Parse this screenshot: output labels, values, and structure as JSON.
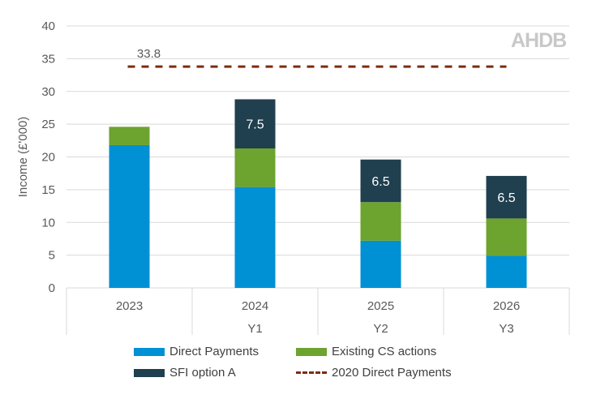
{
  "chart_data": {
    "type": "bar",
    "stacked": true,
    "categories": [
      "2023",
      "2024",
      "2025",
      "2026"
    ],
    "subcategories": [
      "",
      "Y1",
      "Y2",
      "Y3"
    ],
    "ylabel": "Income (£'000)",
    "ylim": [
      0,
      40
    ],
    "yticks": [
      0,
      5,
      10,
      15,
      20,
      25,
      30,
      35,
      40
    ],
    "grid": true,
    "legend_placement": "bottom",
    "series": [
      {
        "name": "Direct Payments",
        "color": "#0090d4",
        "values": [
          21.8,
          15.4,
          7.2,
          4.9
        ]
      },
      {
        "name": "Existing CS actions",
        "color": "#6da32f",
        "values": [
          2.8,
          5.9,
          5.9,
          5.7
        ]
      },
      {
        "name": "SFI option A",
        "color": "#203f4f",
        "values": [
          0,
          7.5,
          6.5,
          6.5
        ],
        "data_labels": [
          "",
          "7.5",
          "6.5",
          "6.5"
        ]
      }
    ],
    "reference_line": {
      "name": "2020 Direct Payments",
      "value": 33.8,
      "label": "33.8",
      "color": "#7a2e0e",
      "style": "dashed"
    }
  },
  "logo": "AHDB"
}
